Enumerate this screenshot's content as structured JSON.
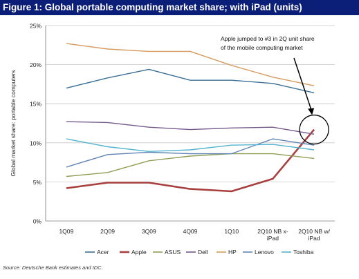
{
  "figure_title": "Figure 1:  Global portable computing market share; with iPad (units)",
  "source": "Source: Deutsche Bank estimates and IDC.",
  "chart_data": {
    "type": "line",
    "title": "Figure 1:  Global portable computing market share; with iPad (units)",
    "ylabel": "Global market share:  portable computers",
    "xlabel": "",
    "categories": [
      "1Q09",
      "2Q09",
      "3Q09",
      "4Q09",
      "1Q10",
      "2Q10 NB x-iPad",
      "2Q10 NB w/ iPad"
    ],
    "category_lines": [
      [
        "1Q09"
      ],
      [
        "2Q09"
      ],
      [
        "3Q09"
      ],
      [
        "4Q09"
      ],
      [
        "1Q10"
      ],
      [
        "2Q10 NB x-",
        "iPad"
      ],
      [
        "2Q10 NB w/",
        "iPad"
      ]
    ],
    "ylim": [
      0,
      25
    ],
    "yticks": [
      0,
      5,
      10,
      15,
      20,
      25
    ],
    "ytick_labels": [
      "0%",
      "5%",
      "10%",
      "15%",
      "20%",
      "25%"
    ],
    "grid": true,
    "legend_position": "bottom",
    "series": [
      {
        "name": "Acer",
        "color": "#3a6f95",
        "values": [
          17.0,
          18.3,
          19.4,
          18.0,
          18.0,
          17.6,
          16.4
        ]
      },
      {
        "name": "Apple",
        "color": "#a7403f",
        "values": [
          4.2,
          4.9,
          4.9,
          4.1,
          3.8,
          5.4,
          11.7
        ]
      },
      {
        "name": "ASUS",
        "color": "#8e9e55",
        "values": [
          5.7,
          6.2,
          7.7,
          8.3,
          8.6,
          8.6,
          8.0
        ]
      },
      {
        "name": "Dell",
        "color": "#75598d",
        "values": [
          12.7,
          12.6,
          12.0,
          11.7,
          11.9,
          12.0,
          11.1
        ]
      },
      {
        "name": "HP",
        "color": "#d69a5f",
        "values": [
          22.7,
          22.0,
          21.7,
          21.7,
          19.9,
          18.4,
          17.3
        ]
      },
      {
        "name": "Lenovo",
        "color": "#5f84b3",
        "values": [
          6.9,
          8.5,
          8.8,
          8.6,
          8.6,
          10.5,
          9.7
        ]
      },
      {
        "name": "Toshiba",
        "color": "#52b3cf",
        "values": [
          10.5,
          9.5,
          8.9,
          9.1,
          9.7,
          9.8,
          9.1
        ]
      }
    ],
    "annotation": {
      "lines": [
        "Apple jumped to #3 in 2Q unit share",
        "of the mobile computing market"
      ],
      "target_series": "Apple",
      "target_category": "2Q10 NB w/ iPad"
    }
  }
}
